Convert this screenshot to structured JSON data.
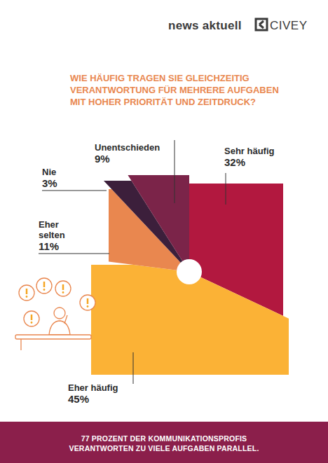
{
  "header": {
    "left": "news aktuell",
    "right": "CIVEY"
  },
  "chart_data": {
    "type": "pie",
    "title": "WIE HÄUFIG TRAGEN SIE GLEICHZEITIG VERANTWORTUNG FÜR MEHRERE AUFGABEN MIT HOHER PRIORITÄT UND ZEITDRUCK?",
    "categories": [
      "Sehr häufig",
      "Eher häufig",
      "Eher selten",
      "Nie",
      "Unentschieden"
    ],
    "values": [
      32,
      45,
      11,
      3,
      9
    ],
    "value_labels": [
      "32%",
      "45%",
      "11%",
      "3%",
      "9%"
    ],
    "colors": [
      "#b2183f",
      "#fbb236",
      "#e9874f",
      "#3c1f3b",
      "#7b2449"
    ],
    "data_labels": true,
    "annotations": [
      "77 PROZENT DER KOMMUNIKATIONSPROFIS VERANTWORTEN ZU VIELE AUFGABEN PARALLEL."
    ]
  }
}
